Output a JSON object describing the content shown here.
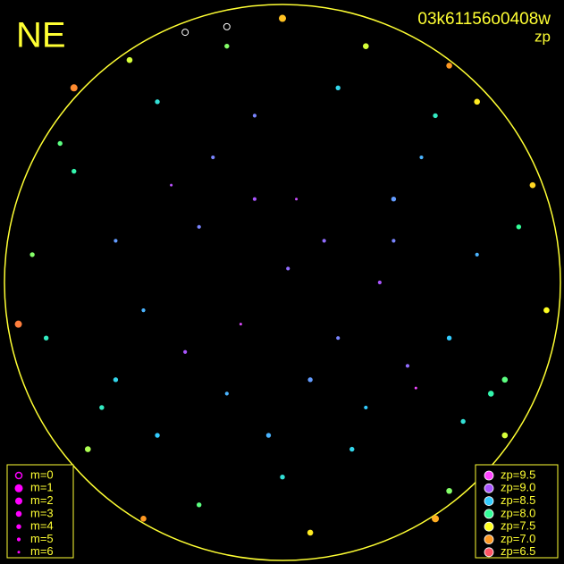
{
  "chart_data": {
    "type": "scatter",
    "title": "NE",
    "subtitle": "03k61156o0408w",
    "color_label": "zp",
    "xlim": [
      -1,
      1
    ],
    "ylim": [
      -1,
      1
    ],
    "x": [
      0.02,
      -0.3,
      0.4,
      -0.5,
      0.6,
      0.1,
      -0.2,
      0.3,
      -0.6,
      0.75,
      0.8,
      -0.1,
      0.2,
      -0.45,
      0.55,
      -0.75,
      0.85,
      -0.85,
      -0.7,
      0.6,
      -0.3,
      0.1,
      0.0,
      -0.55,
      0.6,
      -0.9,
      0.95,
      0.05,
      -0.15,
      0.35,
      -0.4,
      0.45,
      -0.25,
      0.15,
      -0.6,
      0.7,
      -0.05,
      0.25,
      -0.45,
      0.5,
      -0.35,
      0.2,
      -0.8,
      0.3,
      -0.2,
      0.9,
      -0.95,
      0.55,
      -0.5,
      0.65,
      -0.65,
      0.0,
      0.4,
      -0.1,
      0.8,
      -0.75,
      0.7,
      -0.35,
      -0.2,
      0.48
    ],
    "y": [
      0.05,
      0.2,
      0.3,
      -0.1,
      -0.2,
      -0.35,
      -0.4,
      -0.45,
      -0.35,
      -0.4,
      -0.55,
      0.6,
      0.7,
      0.65,
      0.6,
      0.4,
      0.2,
      -0.2,
      -0.6,
      -0.75,
      -0.8,
      -0.9,
      0.95,
      0.8,
      0.78,
      0.1,
      -0.1,
      0.3,
      -0.15,
      0.0,
      0.35,
      -0.3,
      0.45,
      0.15,
      0.15,
      0.1,
      -0.55,
      -0.6,
      -0.55,
      0.45,
      -0.25,
      -0.2,
      0.5,
      0.85,
      0.85,
      0.35,
      -0.15,
      -0.85,
      -0.85,
      -0.5,
      -0.45,
      -0.7,
      0.15,
      0.3,
      -0.35,
      0.7,
      0.65,
      0.9,
      0.92,
      -0.38
    ],
    "zp": [
      8.9,
      8.8,
      8.7,
      8.6,
      8.5,
      8.7,
      8.6,
      8.5,
      8.4,
      8.1,
      7.6,
      8.8,
      8.4,
      8.3,
      8.2,
      8.1,
      8.0,
      8.2,
      7.7,
      7.8,
      7.9,
      7.4,
      7.2,
      7.6,
      7.0,
      7.8,
      7.5,
      9.2,
      9.3,
      9.0,
      9.1,
      8.9,
      8.8,
      8.9,
      8.7,
      8.6,
      8.6,
      8.4,
      8.5,
      8.6,
      9.0,
      8.8,
      7.9,
      7.6,
      7.8,
      7.3,
      6.8,
      7.1,
      7.0,
      8.3,
      8.2,
      8.3,
      8.8,
      9.0,
      7.9,
      6.9,
      7.4,
      7.0,
      7.1,
      9.4
    ],
    "m": [
      5,
      5,
      4,
      5,
      4,
      4,
      5,
      5,
      4,
      3,
      3,
      5,
      4,
      4,
      4,
      4,
      4,
      4,
      3,
      3,
      4,
      3,
      2,
      3,
      3,
      4,
      3,
      6,
      6,
      5,
      6,
      5,
      5,
      5,
      5,
      5,
      4,
      4,
      4,
      5,
      5,
      5,
      4,
      3,
      4,
      3,
      2,
      2,
      3,
      4,
      4,
      4,
      5,
      5,
      3,
      2,
      3,
      0,
      0,
      6
    ],
    "size_legend": {
      "labels": [
        "m=0",
        "m=1",
        "m=2",
        "m=3",
        "m=4",
        "m=5",
        "m=6"
      ],
      "values": [
        0,
        1,
        2,
        3,
        4,
        5,
        6
      ]
    },
    "color_legend": {
      "labels": [
        "zp=9.5",
        "zp=9.0",
        "zp=8.5",
        "zp=8.0",
        "zp=7.5",
        "zp=7.0",
        "zp=6.5"
      ],
      "values": [
        9.5,
        9.0,
        8.5,
        8.0,
        7.5,
        7.0,
        6.5
      ],
      "colors": [
        "#ff44ff",
        "#aa55ff",
        "#33ccff",
        "#33ff99",
        "#ffff22",
        "#ff9922",
        "#ff5566"
      ]
    }
  }
}
